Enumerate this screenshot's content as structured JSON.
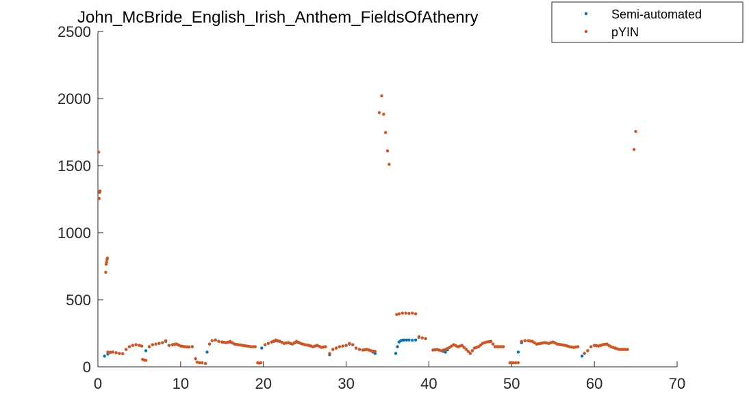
{
  "chart_data": {
    "type": "scatter",
    "title": "John_McBride_English_Irish_Anthem_FieldsOfAthenry",
    "xlabel": "",
    "ylabel": "",
    "xlim": [
      0,
      70
    ],
    "ylim": [
      0,
      2500
    ],
    "xticks": [
      0,
      10,
      20,
      30,
      40,
      50,
      60,
      70
    ],
    "yticks": [
      0,
      500,
      1000,
      1500,
      2000,
      2500
    ],
    "grid": false,
    "legend_position": "top-right",
    "series": [
      {
        "name": "Semi-automated",
        "color": "#0072BD",
        "segments": [
          {
            "x": [
              0.8,
              1.2,
              1.5,
              1.8,
              2.2,
              2.6,
              3.0,
              3.4,
              3.8,
              4.2,
              4.6,
              5.0,
              5.3
            ],
            "y": [
              80,
              95,
              108,
              110,
              105,
              100,
              98,
              130,
              150,
              160,
              165,
              160,
              155
            ]
          },
          {
            "x": [
              5.8,
              6.2,
              6.6,
              7.0,
              7.4,
              7.8,
              8.2,
              8.6,
              9.0,
              9.5,
              10.0,
              10.5,
              11.0,
              11.4
            ],
            "y": [
              120,
              150,
              165,
              170,
              175,
              180,
              190,
              160,
              165,
              170,
              155,
              150,
              148,
              150
            ]
          },
          {
            "x": [
              13.2,
              13.5,
              13.8,
              14.2,
              14.6,
              15.0,
              15.5,
              16.0,
              16.5,
              17.0,
              17.5,
              18.0,
              18.5,
              19.0
            ],
            "y": [
              110,
              170,
              195,
              200,
              190,
              185,
              180,
              185,
              170,
              165,
              160,
              155,
              150,
              150
            ]
          },
          {
            "x": [
              19.8,
              20.2,
              20.6,
              21.0,
              21.5,
              22.0,
              22.5,
              23.0,
              23.5,
              24.0,
              24.5,
              25.0,
              25.5,
              26.0,
              26.5,
              27.0,
              27.5
            ],
            "y": [
              140,
              165,
              175,
              185,
              195,
              190,
              175,
              180,
              170,
              185,
              175,
              165,
              160,
              150,
              160,
              145,
              150
            ]
          },
          {
            "x": [
              28.0,
              28.4,
              28.8,
              29.2,
              29.6,
              30.0,
              30.4,
              30.8,
              31.2,
              31.6,
              32.0,
              32.5,
              33.0,
              33.5
            ],
            "y": [
              90,
              130,
              140,
              150,
              155,
              160,
              170,
              165,
              140,
              130,
              125,
              130,
              120,
              100
            ]
          },
          {
            "x": [
              36.0,
              36.2,
              36.4,
              36.6,
              36.8,
              37.0,
              37.3,
              37.6,
              38.0,
              38.4,
              38.8,
              39.2,
              39.6
            ],
            "y": [
              100,
              150,
              185,
              195,
              198,
              200,
              200,
              200,
              198,
              200,
              220,
              215,
              210
            ]
          },
          {
            "x": [
              40.5,
              41.0,
              41.5,
              42.0,
              42.5,
              43.0,
              43.5,
              44.0,
              44.5,
              45.0,
              45.5,
              46.0,
              46.5,
              47.0,
              47.5,
              48.0,
              48.5,
              49.0
            ],
            "y": [
              125,
              130,
              120,
              110,
              145,
              165,
              150,
              160,
              130,
              100,
              140,
              150,
              175,
              185,
              190,
              150,
              150,
              150
            ]
          },
          {
            "x": [
              50.8,
              51.2,
              51.6,
              52.0,
              52.5,
              53.0,
              53.5,
              54.0,
              54.5,
              55.0,
              55.5,
              56.0,
              56.5,
              57.0,
              57.5,
              58.0
            ],
            "y": [
              110,
              180,
              195,
              195,
              190,
              170,
              175,
              180,
              175,
              185,
              170,
              165,
              160,
              150,
              145,
              150
            ]
          },
          {
            "x": [
              58.5,
              58.8,
              59.2,
              59.6,
              60.0,
              60.5,
              61.0,
              61.5,
              62.0,
              62.5,
              63.0,
              63.5,
              64.0
            ],
            "y": [
              80,
              100,
              120,
              150,
              160,
              155,
              165,
              170,
              150,
              140,
              130,
              130,
              130
            ]
          }
        ]
      },
      {
        "name": "pYIN",
        "color": "#D95319",
        "segments": [
          {
            "x": [
              0.1,
              0.15,
              0.2,
              0.25
            ],
            "y": [
              1600,
              1255,
              1300,
              1310
            ]
          },
          {
            "x": [
              0.95,
              1.0,
              1.05,
              1.1,
              1.15
            ],
            "y": [
              705,
              765,
              780,
              800,
              810
            ]
          },
          {
            "x": [
              1.2,
              1.5,
              1.8,
              2.2,
              2.6,
              3.0,
              3.4,
              3.8,
              4.2,
              4.6,
              5.0,
              5.3
            ],
            "y": [
              110,
              108,
              110,
              105,
              100,
              98,
              130,
              150,
              160,
              165,
              160,
              155
            ]
          },
          {
            "x": [
              5.4,
              5.6,
              5.8
            ],
            "y": [
              55,
              50,
              48
            ]
          },
          {
            "x": [
              6.2,
              6.6,
              7.0,
              7.4,
              7.8,
              8.2,
              8.6,
              9.0,
              9.5,
              10.0,
              10.5,
              11.0,
              11.4
            ],
            "y": [
              150,
              165,
              170,
              175,
              180,
              195,
              160,
              165,
              170,
              155,
              150,
              148,
              150
            ]
          },
          {
            "x": [
              11.8,
              12.0,
              12.3,
              12.6,
              13.0
            ],
            "y": [
              60,
              35,
              30,
              30,
              25
            ]
          },
          {
            "x": [
              13.5,
              13.8,
              14.2,
              14.6,
              15.0,
              15.5,
              16.0,
              16.5,
              17.0,
              17.5,
              18.0,
              18.5,
              19.0
            ],
            "y": [
              170,
              195,
              200,
              190,
              185,
              180,
              190,
              170,
              165,
              160,
              155,
              150,
              150
            ]
          },
          {
            "x": [
              19.3,
              19.5,
              19.7
            ],
            "y": [
              30,
              28,
              30
            ]
          },
          {
            "x": [
              20.2,
              20.6,
              21.0,
              21.5,
              22.0,
              22.5,
              23.0,
              23.5,
              24.0,
              24.5,
              25.0,
              25.5,
              26.0,
              26.5,
              27.0,
              27.5
            ],
            "y": [
              165,
              175,
              185,
              200,
              190,
              175,
              180,
              170,
              190,
              175,
              165,
              160,
              150,
              160,
              145,
              150
            ]
          },
          {
            "x": [
              28.0,
              28.4,
              28.8,
              29.2,
              29.6,
              30.0,
              30.4,
              30.8,
              31.2,
              31.6,
              32.0,
              32.5,
              33.0,
              33.5
            ],
            "y": [
              100,
              130,
              140,
              150,
              155,
              160,
              175,
              165,
              140,
              130,
              125,
              130,
              120,
              115
            ]
          },
          {
            "x": [
              34.0,
              34.3,
              35.0,
              35.2
            ],
            "y": [
              1895,
              2020,
              1610,
              1510
            ]
          },
          {
            "x": [
              36.1,
              36.4,
              36.8,
              37.2,
              37.6,
              38.0,
              38.4
            ],
            "y": [
              390,
              395,
              400,
              400,
              398,
              400,
              395
            ]
          },
          {
            "x": [
              38.8,
              39.2,
              39.6
            ],
            "y": [
              225,
              215,
              210
            ]
          },
          {
            "x": [
              40.5,
              41.0,
              41.5,
              42.0,
              42.5,
              43.0,
              43.5,
              44.0,
              44.5,
              45.0,
              45.5,
              46.0,
              46.5,
              47.0,
              47.5,
              48.0,
              48.5,
              49.0
            ],
            "y": [
              125,
              130,
              120,
              130,
              145,
              165,
              150,
              160,
              130,
              100,
              140,
              150,
              175,
              185,
              190,
              150,
              150,
              150
            ]
          },
          {
            "x": [
              49.8,
              50.0,
              50.2,
              50.8
            ],
            "y": [
              30,
              28,
              30,
              30
            ]
          },
          {
            "x": [
              51.2,
              51.6,
              52.0,
              52.5,
              53.0,
              53.5,
              54.0,
              54.5,
              55.0,
              55.5,
              56.0,
              56.5,
              57.0,
              57.5,
              58.0
            ],
            "y": [
              190,
              195,
              195,
              190,
              170,
              175,
              180,
              175,
              185,
              170,
              165,
              160,
              150,
              145,
              150
            ]
          },
          {
            "x": [
              58.8,
              59.2,
              59.6,
              60.0,
              60.5,
              61.0,
              61.5,
              62.0,
              62.5,
              63.0,
              63.5,
              64.0
            ],
            "y": [
              100,
              120,
              150,
              160,
              155,
              165,
              170,
              150,
              140,
              130,
              130,
              130
            ]
          },
          {
            "x": [
              64.8,
              65.0
            ],
            "y": [
              1620,
              1755
            ]
          }
        ]
      }
    ]
  }
}
